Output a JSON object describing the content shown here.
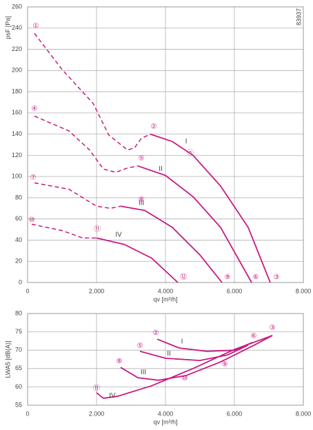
{
  "chart_data": [
    {
      "type": "line",
      "note": "83937",
      "xlabel": "qv [m³/h]",
      "ylabel": "psF [Pa]",
      "grid": true,
      "xlim": [
        0,
        8000
      ],
      "ylim": [
        0,
        260
      ],
      "xticks": [
        0,
        {
          "value": 2000,
          "label": "2.000"
        },
        {
          "value": 4000,
          "label": "4.000"
        },
        {
          "value": 6000,
          "label": "6.000"
        },
        {
          "value": 8000,
          "label": "8.000"
        }
      ],
      "yticks": [
        0,
        20,
        40,
        60,
        80,
        100,
        120,
        140,
        160,
        180,
        200,
        220,
        240,
        260
      ],
      "series": [
        {
          "name": "I",
          "color": "#c8197e",
          "label_at": {
            "x": 4600,
            "y": 133
          },
          "dashed": {
            "x": [
              200,
              1000,
              1900,
              2360,
              2900,
              3100,
              3300,
              3560
            ],
            "values": [
              235,
              201,
              169,
              139,
              125,
              127,
              136,
              140
            ]
          },
          "solid": {
            "x": [
              3560,
              4200,
              4800,
              5600,
              6400,
              7040
            ],
            "values": [
              140,
              133,
              120,
              91,
              52,
              0
            ]
          }
        },
        {
          "name": "II",
          "color": "#c8197e",
          "label_at": {
            "x": 3860,
            "y": 107
          },
          "dashed": {
            "x": [
              200,
              1200,
              1800,
              2200,
              2560,
              2900,
              3200
            ],
            "values": [
              157,
              143,
              125,
              107,
              104,
              108,
              110
            ]
          },
          "solid": {
            "x": [
              3200,
              4000,
              4800,
              5600,
              6500
            ],
            "values": [
              110,
              101,
              81,
              52,
              0
            ]
          }
        },
        {
          "name": "III",
          "color": "#c8197e",
          "label_at": {
            "x": 3300,
            "y": 75
          },
          "dashed": {
            "x": [
              200,
              1200,
              2000,
              2400,
              2700
            ],
            "values": [
              94,
              88,
              72,
              70,
              72
            ]
          },
          "solid": {
            "x": [
              2700,
              3400,
              4200,
              5000,
              5640
            ],
            "values": [
              72,
              68,
              52,
              26,
              0
            ]
          }
        },
        {
          "name": "IV",
          "color": "#c8197e",
          "label_at": {
            "x": 2640,
            "y": 45
          },
          "dashed": {
            "x": [
              120,
              1000,
              1600,
              2000
            ],
            "values": [
              55,
              49,
              42,
              42
            ]
          },
          "solid": {
            "x": [
              2000,
              2800,
              3600,
              4360
            ],
            "values": [
              42,
              36,
              23,
              0
            ]
          }
        }
      ],
      "annotations": [
        {
          "text": "①",
          "x": 240,
          "y": 242
        },
        {
          "text": "②",
          "x": 3660,
          "y": 147
        },
        {
          "text": "③",
          "x": 7220,
          "y": 5
        },
        {
          "text": "ⓝ",
          "x": 4720,
          "y": 122
        },
        {
          "text": "④",
          "x": 200,
          "y": 164
        },
        {
          "text": "⑤",
          "x": 3300,
          "y": 117
        },
        {
          "text": "⑥",
          "x": 6620,
          "y": 5
        },
        {
          "text": "⑦",
          "x": 160,
          "y": 99
        },
        {
          "text": "⑧",
          "x": 3300,
          "y": 78
        },
        {
          "text": "⑨",
          "x": 5800,
          "y": 5
        },
        {
          "text": "⑩",
          "x": 120,
          "y": 59
        },
        {
          "text": "⑪",
          "x": 2020,
          "y": 50
        },
        {
          "text": "⑫",
          "x": 4520,
          "y": 5
        }
      ]
    },
    {
      "type": "line",
      "xlabel": "qv [m³/h]",
      "ylabel": "LWA5 [dB(A)]",
      "grid": true,
      "xlim": [
        0,
        8000
      ],
      "ylim": [
        55,
        80
      ],
      "xticks": [
        0,
        {
          "value": 2000,
          "label": "2.000"
        },
        {
          "value": 4000,
          "label": "4.000"
        },
        {
          "value": 6000,
          "label": "6.000"
        },
        {
          "value": 8000,
          "label": "8.000"
        }
      ],
      "yticks": [
        55,
        60,
        65,
        70,
        75,
        80
      ],
      "series": [
        {
          "name": "I",
          "color": "#c8197e",
          "label_at": {
            "x": 4480,
            "y": 72.3
          },
          "solid": {
            "x": [
              3760,
              4400,
              5200,
              6000,
              6520
            ],
            "values": [
              73.0,
              70.6,
              69.7,
              70.0,
              72.1
            ]
          }
        },
        {
          "name": "II",
          "color": "#c8197e",
          "label_at": {
            "x": 4100,
            "y": 69.0
          },
          "solid": {
            "x": [
              3260,
              4000,
              5000,
              5800,
              6400
            ],
            "values": [
              69.7,
              67.8,
              67.2,
              68.7,
              71.4
            ]
          }
        },
        {
          "name": "III",
          "color": "#c8197e",
          "label_at": {
            "x": 3360,
            "y": 64.0
          },
          "solid": {
            "x": [
              2700,
              3200,
              3800,
              4600,
              5600,
              6600,
              7100
            ],
            "values": [
              65.3,
              62.5,
              61.8,
              63.1,
              66.8,
              71.5,
              74.0
            ]
          }
        },
        {
          "name": "IV",
          "color": "#c8197e",
          "label_at": {
            "x": 2460,
            "y": 57.6
          },
          "solid": {
            "x": [
              2000,
              2200,
              2600,
              3600,
              4800,
              6000,
              7100
            ],
            "values": [
              58.4,
              56.9,
              57.4,
              60.3,
              65.0,
              70.2,
              74.0
            ]
          }
        }
      ],
      "annotations": [
        {
          "text": "②",
          "x": 3720,
          "y": 74.7
        },
        {
          "text": "⑥",
          "x": 6560,
          "y": 73.8
        },
        {
          "text": "⑤",
          "x": 3260,
          "y": 71.2
        },
        {
          "text": "⑧",
          "x": 2660,
          "y": 67.0
        },
        {
          "text": "③",
          "x": 7100,
          "y": 76.1
        },
        {
          "text": "⑨",
          "x": 5720,
          "y": 66.1
        },
        {
          "text": "⑩",
          "x": 4560,
          "y": 62.3
        },
        {
          "text": "⑪",
          "x": 2000,
          "y": 59.5
        }
      ]
    }
  ]
}
